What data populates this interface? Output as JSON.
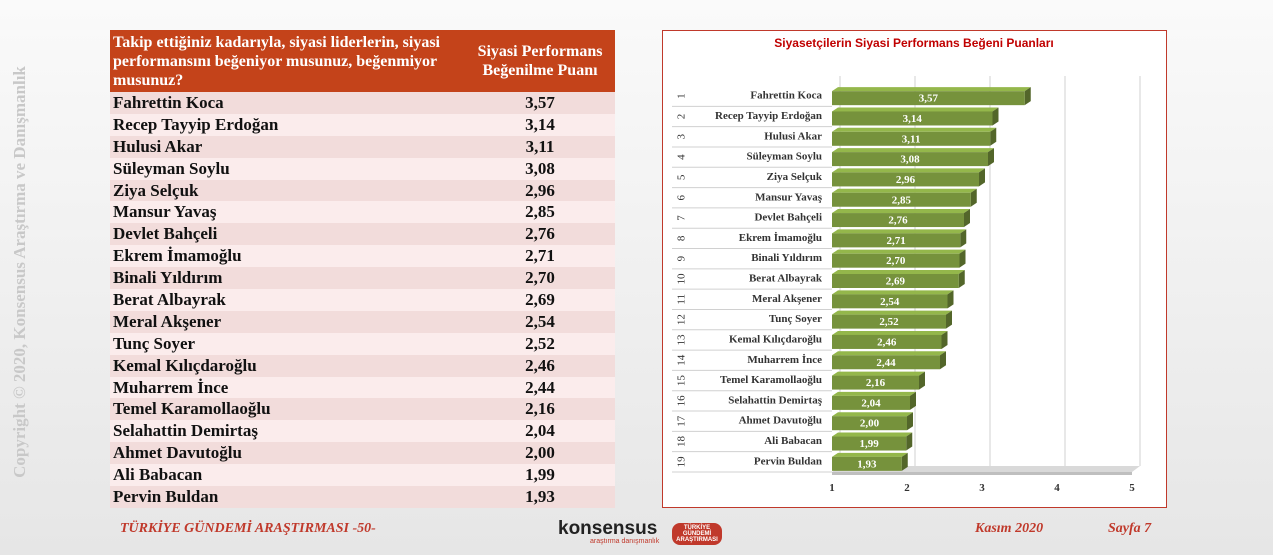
{
  "copyright": "Copyright © 2020, Konsensus Araştırma ve Danışmanlık",
  "table": {
    "header": [
      "Takip ettiğiniz kadarıyla, siyasi liderlerin, siyasi performansını beğeniyor musunuz, beğenmiyor musunuz?",
      "Siyasi Performans Beğenilme Puanı"
    ],
    "rows": [
      [
        "Fahrettin Koca",
        "3,57"
      ],
      [
        "Recep Tayyip Erdoğan",
        "3,14"
      ],
      [
        "Hulusi Akar",
        "3,11"
      ],
      [
        "Süleyman Soylu",
        "3,08"
      ],
      [
        "Ziya Selçuk",
        "2,96"
      ],
      [
        "Mansur Yavaş",
        "2,85"
      ],
      [
        "Devlet Bahçeli",
        "2,76"
      ],
      [
        "Ekrem İmamoğlu",
        "2,71"
      ],
      [
        "Binali Yıldırım",
        "2,70"
      ],
      [
        "Berat Albayrak",
        "2,69"
      ],
      [
        "Meral Akşener",
        "2,54"
      ],
      [
        "Tunç Soyer",
        "2,52"
      ],
      [
        "Kemal Kılıçdaroğlu",
        "2,46"
      ],
      [
        "Muharrem İnce",
        "2,44"
      ],
      [
        "Temel Karamollaoğlu",
        "2,16"
      ],
      [
        "Selahattin Demirtaş",
        "2,04"
      ],
      [
        "Ahmet Davutoğlu",
        "2,00"
      ],
      [
        "Ali Babacan",
        "1,99"
      ],
      [
        "Pervin Buldan",
        "1,93"
      ]
    ]
  },
  "chart_data": {
    "type": "bar",
    "orientation": "horizontal",
    "title": "Siyasetçilerin Siyasi Performans Beğeni Puanları",
    "ranks": [
      1,
      2,
      3,
      4,
      5,
      6,
      7,
      8,
      9,
      10,
      11,
      12,
      13,
      14,
      15,
      16,
      17,
      18,
      19
    ],
    "categories": [
      "Fahrettin Koca",
      "Recep Tayyip Erdoğan",
      "Hulusi Akar",
      "Süleyman Soylu",
      "Ziya Selçuk",
      "Mansur Yavaş",
      "Devlet Bahçeli",
      "Ekrem İmamoğlu",
      "Binali Yıldırım",
      "Berat Albayrak",
      "Meral Akşener",
      "Tunç Soyer",
      "Kemal Kılıçdaroğlu",
      "Muharrem İnce",
      "Temel Karamollaoğlu",
      "Selahattin Demirtaş",
      "Ahmet Davutoğlu",
      "Ali Babacan",
      "Pervin Buldan"
    ],
    "values": [
      3.57,
      3.14,
      3.11,
      3.08,
      2.96,
      2.85,
      2.76,
      2.71,
      2.7,
      2.69,
      2.54,
      2.52,
      2.46,
      2.44,
      2.16,
      2.04,
      2.0,
      1.99,
      1.93
    ],
    "value_labels": [
      "3,57",
      "3,14",
      "3,11",
      "3,08",
      "2,96",
      "2,85",
      "2,76",
      "2,71",
      "2,70",
      "2,69",
      "2,54",
      "2,52",
      "2,46",
      "2,44",
      "2,16",
      "2,04",
      "2,00",
      "1,99",
      "1,93"
    ],
    "color": "#76923c",
    "xlim": [
      1,
      5
    ],
    "xticks": [
      1,
      2,
      3,
      4,
      5
    ],
    "grid": true
  },
  "footer": {
    "left": "TÜRKİYE GÜNDEMİ ARAŞTIRMASI -50-",
    "logo": "konsensus",
    "logo_sub": "araştırma danışmanlık",
    "badge": "TÜRKİYE GÜNDEMİ ARAŞTIRMASI",
    "date": "Kasım 2020",
    "page": "Sayfa 7"
  }
}
